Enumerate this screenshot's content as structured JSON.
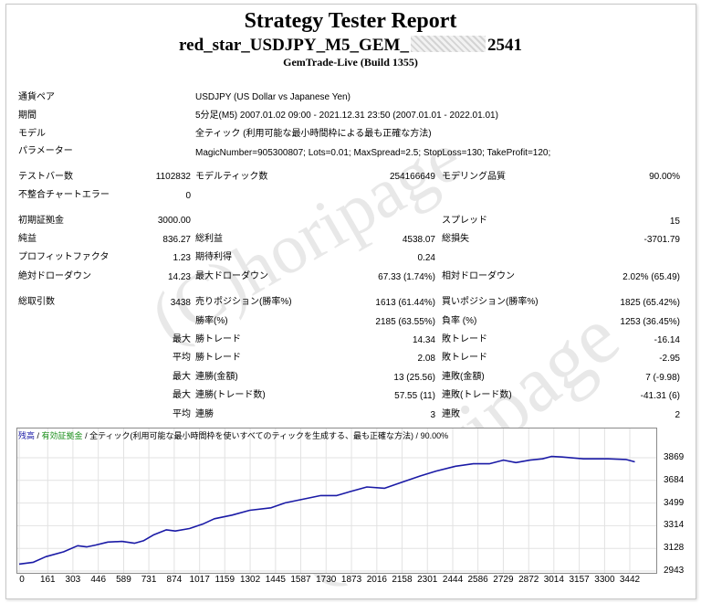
{
  "header": {
    "title": "Strategy Tester Report",
    "subtitle_prefix": "red_star_USDJPY_M5_GEM_",
    "subtitle_suffix": "2541",
    "build": "GemTrade-Live (Build 1355)"
  },
  "settings": {
    "pair_label": "通貨ペア",
    "pair_value": "USDJPY (US Dollar vs Japanese Yen)",
    "period_label": "期間",
    "period_value": "5分足(M5) 2007.01.02 09:00 - 2021.12.31 23:50 (2007.01.01 - 2022.01.01)",
    "model_label": "モデル",
    "model_value": "全ティック (利用可能な最小時間枠による最も正確な方法)",
    "params_label": "パラメーター",
    "params_value": "MagicNumber=905300807; Lots=0.01; MaxSpread=2.5; StopLoss=130; TakeProfit=120;"
  },
  "stats": {
    "bars_label": "テストバー数",
    "bars": "1102832",
    "ticks_label": "モデルティック数",
    "ticks": "254166649",
    "quality_label": "モデリング品質",
    "quality": "90.00%",
    "mismatch_label": "不整合チャートエラー",
    "mismatch": "0",
    "deposit_label": "初期証拠金",
    "deposit": "3000.00",
    "spread_label": "スプレッド",
    "spread": "15",
    "net_label": "純益",
    "net": "836.27",
    "gross_profit_label": "総利益",
    "gross_profit": "4538.07",
    "gross_loss_label": "総損失",
    "gross_loss": "-3701.79",
    "pf_label": "プロフィットファクタ",
    "pf": "1.23",
    "payoff_label": "期待利得",
    "payoff": "0.24",
    "abs_dd_label": "絶対ドローダウン",
    "abs_dd": "14.23",
    "max_dd_label": "最大ドローダウン",
    "max_dd": "67.33 (1.74%)",
    "rel_dd_label": "相対ドローダウン",
    "rel_dd": "2.02% (65.49)",
    "trades_label": "総取引数",
    "trades": "3438",
    "short_label": "売りポジション(勝率%)",
    "short": "1613 (61.44%)",
    "long_label": "買いポジション(勝率%)",
    "long": "1825 (65.42%)",
    "winrate_label": "勝率(%)",
    "winrate": "2185 (63.55%)",
    "lossrate_label": "負率 (%)",
    "lossrate": "1253 (36.45%)",
    "max_label": "最大",
    "avg_label": "平均",
    "largest_win_label": "勝トレード",
    "largest_win": "14.34",
    "largest_loss_label": "敗トレード",
    "largest_loss": "-16.14",
    "avg_win_label": "勝トレード",
    "avg_win": "2.08",
    "avg_loss_label": "敗トレード",
    "avg_loss": "-2.95",
    "max_cons_win_label": "連勝(金額)",
    "max_cons_win": "13 (25.56)",
    "max_cons_loss_label": "連敗(金額)",
    "max_cons_loss": "7 (-9.98)",
    "max_cons_profit_label": "連勝(トレード数)",
    "max_cons_profit": "57.55 (11)",
    "max_cons_lossamt_label": "連敗(トレード数)",
    "max_cons_lossamt": "-41.31 (6)",
    "avg_cons_win_label": "連勝",
    "avg_cons_win": "3",
    "avg_cons_loss_label": "連敗",
    "avg_cons_loss": "2"
  },
  "watermark": "(C)horipage",
  "colors": {
    "line": "#1a1aa6",
    "legend_green": "#1a8f1a",
    "legend_blue": "#1a1aa6"
  },
  "chart_data": {
    "type": "line",
    "legend": [
      "残高",
      "有効証拠金",
      "全ティック(利用可能な最小時間枠を使いすべてのティックを生成する、最も正確な方法)",
      "90.00%"
    ],
    "x_ticks": [
      "0",
      "161",
      "303",
      "446",
      "589",
      "731",
      "874",
      "1017",
      "1159",
      "1302",
      "1445",
      "1587",
      "1730",
      "1873",
      "2016",
      "2158",
      "2301",
      "2444",
      "2586",
      "2729",
      "2872",
      "3014",
      "3157",
      "3300",
      "3442"
    ],
    "y_ticks": [
      "3869",
      "3684",
      "3499",
      "3314",
      "3128",
      "2943"
    ],
    "xlim": [
      0,
      3550
    ],
    "ylim": [
      2943,
      3944
    ],
    "series": [
      {
        "x": [
          0,
          80,
          150,
          250,
          330,
          380,
          430,
          500,
          580,
          650,
          700,
          760,
          830,
          880,
          960,
          1040,
          1100,
          1200,
          1300,
          1420,
          1500,
          1600,
          1700,
          1790,
          1860,
          1960,
          2060,
          2140,
          2260,
          2350,
          2460,
          2560,
          2650,
          2730,
          2800,
          2880,
          2950,
          3000,
          3060,
          3180,
          3320,
          3420,
          3470
        ],
        "y": [
          3000,
          3015,
          3060,
          3100,
          3150,
          3140,
          3155,
          3180,
          3185,
          3170,
          3190,
          3240,
          3280,
          3270,
          3290,
          3330,
          3370,
          3400,
          3440,
          3460,
          3500,
          3530,
          3560,
          3560,
          3590,
          3630,
          3620,
          3660,
          3720,
          3760,
          3800,
          3820,
          3820,
          3850,
          3830,
          3850,
          3860,
          3880,
          3875,
          3860,
          3860,
          3855,
          3836
        ]
      }
    ]
  }
}
